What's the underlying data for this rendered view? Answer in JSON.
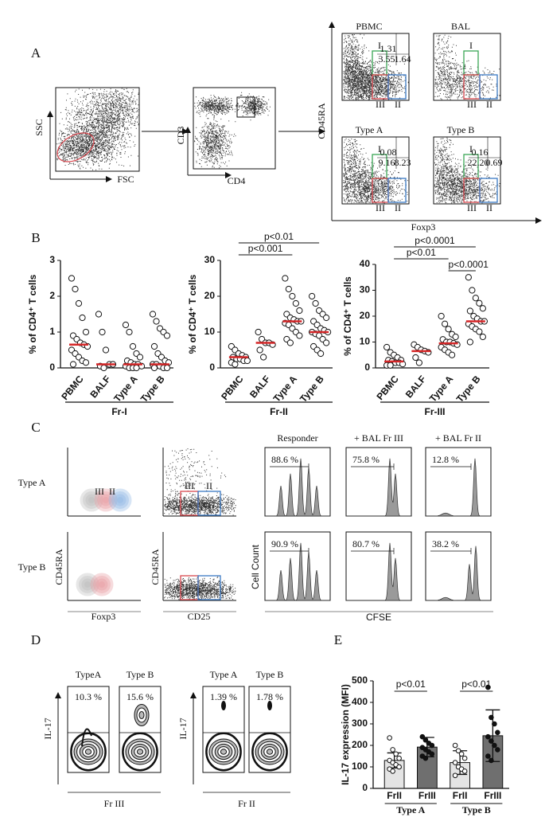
{
  "panel_labels": [
    "A",
    "B",
    "C",
    "D",
    "E"
  ],
  "panel_a": {
    "fsc_ssc": {
      "x_label": "FSC",
      "y_label": "SSC"
    },
    "cd4_cd3": {
      "x_label": "CD4",
      "y_label": "CD3"
    },
    "x_label": "Foxp3",
    "y_label": "CD45RA",
    "gates": [
      "I",
      "III",
      "II"
    ],
    "plots": [
      {
        "title": "PBMC",
        "quadrants": [
          "1.31",
          "3.55",
          "1.64"
        ]
      },
      {
        "title": "BAL",
        "quadrants": []
      },
      {
        "title": "Type A",
        "quadrants": [
          "0.08",
          "9.16",
          "8.23"
        ]
      },
      {
        "title": "Type B",
        "quadrants": [
          "0.16",
          "22.20",
          "0.69"
        ]
      }
    ]
  },
  "panel_c": {
    "rows": [
      "Type A",
      "Type B"
    ],
    "dot_x_labels": [
      "Foxp3",
      "CD25"
    ],
    "dot_y_label": "CD45RA",
    "gates": [
      "III",
      "II"
    ],
    "hist_titles": [
      "Responder",
      "+ BAL Fr III",
      "+ BAL Fr II"
    ],
    "hist_y_label": "Cell Count",
    "hist_x_label": "CFSE",
    "percent": [
      [
        "88.6 %",
        "75.8 %",
        "12.8 %"
      ],
      [
        "90.9 %",
        "80.7 %",
        "38.2 %"
      ]
    ]
  },
  "panel_d": {
    "y_label": "IL-17",
    "groups": [
      {
        "titles": [
          "TypeA",
          "Type B"
        ],
        "percent": [
          "10.3 %",
          "15.6 %"
        ],
        "x_label": "Fr III"
      },
      {
        "titles": [
          "Type A",
          "Type B"
        ],
        "percent": [
          "1.39 %",
          "1.78 %"
        ],
        "x_label": "Fr II"
      }
    ]
  },
  "chart_data": [
    {
      "type": "dot",
      "y_label": "% of CD4⁺ T cells",
      "categories": [
        "PBMC",
        "BALF",
        "Type A",
        "Type B"
      ],
      "group_label": "Fr-I",
      "ylim": [
        0,
        3
      ],
      "yticks": [
        0,
        1,
        2,
        3
      ],
      "median_color": "#d62728",
      "medians": [
        0.65,
        0.1,
        0.1,
        0.1
      ],
      "points": [
        [
          2.5,
          2.2,
          1.8,
          1.4,
          1.0,
          0.9,
          0.8,
          0.7,
          0.65,
          0.6,
          0.5,
          0.4,
          0.3,
          0.2,
          0.15,
          0.1
        ],
        [
          1.5,
          1.0,
          0.5,
          0.1,
          0.1,
          0.05,
          0
        ],
        [
          1.2,
          1.0,
          0.6,
          0.4,
          0.3,
          0.2,
          0.15,
          0.1,
          0.1,
          0.05,
          0.05,
          0,
          0,
          0
        ],
        [
          1.5,
          1.3,
          1.1,
          1.0,
          0.9,
          0.6,
          0.4,
          0.3,
          0.2,
          0.15,
          0.1,
          0.1,
          0.05,
          0,
          0,
          0
        ]
      ],
      "annotations": []
    },
    {
      "type": "dot",
      "y_label": "% of CD4⁺ T cells",
      "categories": [
        "PBMC",
        "BALF",
        "Type A",
        "Type B"
      ],
      "group_label": "Fr-II",
      "ylim": [
        0,
        30
      ],
      "yticks": [
        0,
        10,
        20,
        30
      ],
      "median_color": "#d62728",
      "medians": [
        3,
        7,
        13,
        10
      ],
      "points": [
        [
          6,
          5,
          4,
          3.5,
          3,
          3,
          2.5,
          2.5,
          2,
          2,
          1.5,
          1
        ],
        [
          10,
          8,
          7,
          7,
          6.5,
          5,
          3
        ],
        [
          25,
          22,
          20,
          18,
          16,
          15,
          14,
          13.5,
          13,
          13,
          12.5,
          12,
          11,
          10,
          9,
          8,
          7
        ],
        [
          20,
          18,
          16,
          15,
          14,
          13,
          12,
          11,
          10.5,
          10,
          10,
          9.5,
          9,
          8,
          7,
          6,
          5,
          4
        ]
      ],
      "annotations": [
        "p<0.01",
        "p<0.001"
      ]
    },
    {
      "type": "dot",
      "y_label": "% of CD4⁺ T cells",
      "categories": [
        "PBMC",
        "BALF",
        "Type A",
        "Type B"
      ],
      "group_label": "Fr-III",
      "ylim": [
        0,
        40
      ],
      "yticks": [
        0,
        10,
        20,
        30,
        40
      ],
      "median_color": "#d62728",
      "medians": [
        2.5,
        6.5,
        9.5,
        18
      ],
      "points": [
        [
          8,
          6,
          5,
          4,
          3,
          3,
          2.5,
          2,
          2,
          1.5,
          1,
          1
        ],
        [
          9,
          8,
          7,
          6.5,
          6,
          4,
          2
        ],
        [
          20,
          17,
          15,
          13,
          12,
          11,
          10,
          10,
          9.5,
          9,
          8,
          7,
          6,
          5
        ],
        [
          35,
          30,
          27,
          25,
          23,
          22,
          20,
          19,
          18,
          18,
          17,
          16,
          15,
          14,
          12,
          10
        ]
      ],
      "annotations": [
        "p<0.0001",
        "p<0.01",
        "p<0.0001"
      ]
    },
    {
      "type": "bar",
      "y_label": "IL-17 expression (MFI)",
      "categories": [
        "FrII",
        "FrIII",
        "FrII",
        "FrIII"
      ],
      "groups": [
        "Type A",
        "Type B"
      ],
      "ylim": [
        0,
        500
      ],
      "yticks": [
        0,
        100,
        200,
        300,
        400,
        500
      ],
      "values": [
        130,
        192,
        120,
        245
      ],
      "errors": [
        35,
        45,
        55,
        120
      ],
      "colors": [
        "#e4e4e4",
        "#6f6f6f",
        "#e4e4e4",
        "#6f6f6f"
      ],
      "points": [
        [
          235,
          180,
          160,
          140,
          130,
          120,
          110,
          100,
          90,
          80
        ],
        [
          240,
          225,
          210,
          200,
          190,
          180,
          170,
          160,
          150,
          140
        ],
        [
          200,
          175,
          160,
          140,
          120,
          100,
          90,
          80,
          60
        ],
        [
          470,
          330,
          300,
          260,
          240,
          220,
          200,
          180,
          150,
          130
        ]
      ],
      "annotations": [
        "p<0.01",
        "p<0.01"
      ]
    }
  ]
}
